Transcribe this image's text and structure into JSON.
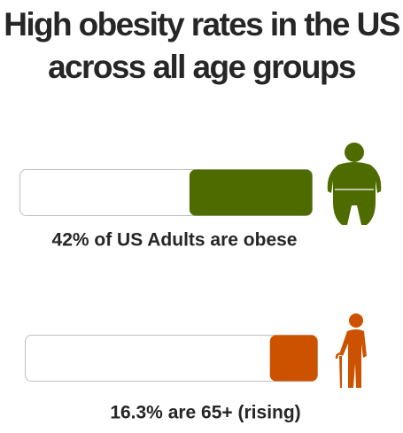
{
  "chart_data": {
    "type": "bar",
    "orientation": "horizontal",
    "title": "High obesity rates in the US across all age groups",
    "categories": [
      "42% of US Adults are obese",
      "16.3% are 65+ (rising)"
    ],
    "values": [
      42,
      16.3
    ],
    "colors": [
      "#4e6b00",
      "#cc5200"
    ],
    "xlim": [
      0,
      100
    ]
  }
}
